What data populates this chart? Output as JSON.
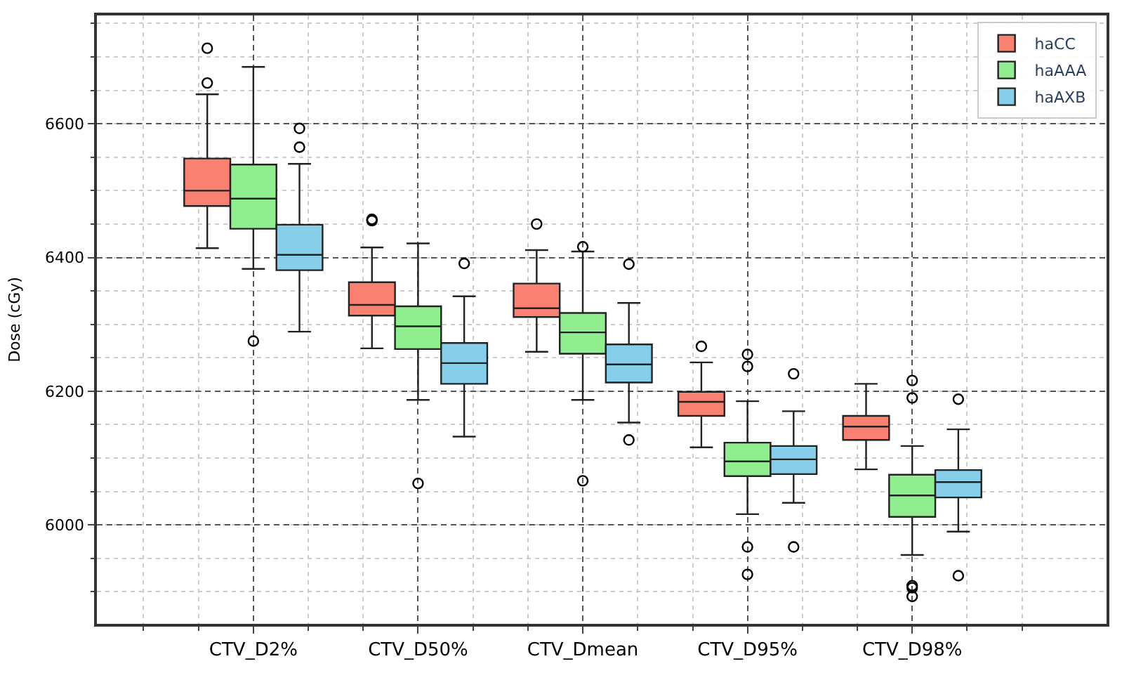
{
  "chart_data": {
    "type": "box",
    "ylabel": "Dose (cGy)",
    "categories": [
      "CTV_D2%",
      "CTV_D50%",
      "CTV_Dmean",
      "CTV_D95%",
      "CTV_D98%"
    ],
    "series": [
      {
        "name": "haCC",
        "color": "#fa8072",
        "boxes": [
          {
            "low": 6414,
            "q1": 6477,
            "median": 6500,
            "q3": 6548,
            "high": 6644,
            "outliers": [
              6661,
              6713
            ]
          },
          {
            "low": 6264,
            "q1": 6313,
            "median": 6329,
            "q3": 6363,
            "high": 6415,
            "outliers": [
              6455,
              6457
            ]
          },
          {
            "low": 6259,
            "q1": 6311,
            "median": 6324,
            "q3": 6361,
            "high": 6411,
            "outliers": [
              6450
            ]
          },
          {
            "low": 6116,
            "q1": 6163,
            "median": 6184,
            "q3": 6199,
            "high": 6243,
            "outliers": [
              6267
            ]
          },
          {
            "low": 6083,
            "q1": 6127,
            "median": 6147,
            "q3": 6163,
            "high": 6211
          }
        ]
      },
      {
        "name": "haAAA",
        "color": "#90ee90",
        "boxes": [
          {
            "low": 6383,
            "q1": 6443,
            "median": 6488,
            "q3": 6539,
            "high": 6685,
            "outliers": [
              6275
            ]
          },
          {
            "low": 6187,
            "q1": 6263,
            "median": 6297,
            "q3": 6327,
            "high": 6421,
            "outliers": [
              6062
            ]
          },
          {
            "low": 6187,
            "q1": 6256,
            "median": 6288,
            "q3": 6317,
            "high": 6409,
            "outliers": [
              6416,
              6066
            ]
          },
          {
            "low": 6016,
            "q1": 6073,
            "median": 6095,
            "q3": 6123,
            "high": 6185,
            "outliers": [
              6255,
              6237,
              5967,
              5926
            ]
          },
          {
            "low": 5955,
            "q1": 6012,
            "median": 6044,
            "q3": 6075,
            "high": 6118,
            "outliers": [
              6216,
              6190,
              5909,
              5906,
              5893
            ]
          }
        ]
      },
      {
        "name": "haAXB",
        "color": "#87ceeb",
        "boxes": [
          {
            "low": 6289,
            "q1": 6381,
            "median": 6404,
            "q3": 6449,
            "high": 6540,
            "outliers": [
              6565,
              6593
            ]
          },
          {
            "low": 6132,
            "q1": 6211,
            "median": 6242,
            "q3": 6272,
            "high": 6342,
            "outliers": [
              6391
            ]
          },
          {
            "low": 6153,
            "q1": 6213,
            "median": 6240,
            "q3": 6270,
            "high": 6332,
            "outliers": [
              6390,
              6127
            ]
          },
          {
            "low": 6033,
            "q1": 6076,
            "median": 6098,
            "q3": 6118,
            "high": 6170,
            "outliers": [
              6226,
              5967
            ]
          },
          {
            "low": 5990,
            "q1": 6041,
            "median": 6064,
            "q3": 6082,
            "high": 6143,
            "outliers": [
              6188,
              5924
            ]
          }
        ]
      }
    ],
    "ylim": [
      5852,
      6762
    ],
    "yticks": [
      6000,
      6200,
      6400,
      6600
    ],
    "grid": true,
    "legend": "top right"
  }
}
